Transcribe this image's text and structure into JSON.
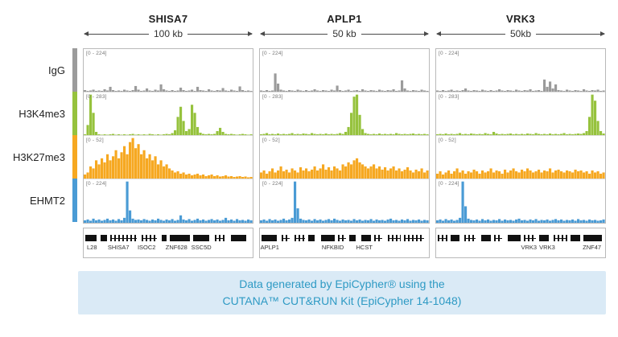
{
  "header": {
    "regions": [
      {
        "name": "SHISA7",
        "span": "100 kb"
      },
      {
        "name": "APLP1",
        "span": "50 kb"
      },
      {
        "name": "VRK3",
        "span": "50kb"
      }
    ]
  },
  "tracks": [
    {
      "label": "IgG",
      "color": "#9b9b9b",
      "scale": "[0 - 224]"
    },
    {
      "label": "H3K4me3",
      "color": "#96c23d",
      "scale": "[0 - 283]"
    },
    {
      "label": "H3K27me3",
      "color": "#f6a821",
      "scale": "[0 - 52]"
    },
    {
      "label": "EHMT2",
      "color": "#4a9bd5",
      "scale": "[0 - 224]"
    }
  ],
  "caption": {
    "line1": "Data generated by EpiCypher® using the",
    "line2": "CUTANA™ CUT&RUN Kit (EpiCypher 14-1048)"
  },
  "chart_data": {
    "type": "area",
    "note": "Genome-browser coverage tracks; values normalized 0-1 per track, 60 bins per region",
    "track_scales": {
      "IgG": "[0 - 224]",
      "H3K4me3": "[0 - 283]",
      "H3K27me3": "[0 - 52]",
      "EHMT2": "[0 - 224]"
    },
    "panels": [
      {
        "region": "SHISA7",
        "span": "100 kb",
        "series": {
          "IgG": [
            0.04,
            0.02,
            0.03,
            0.05,
            0.02,
            0.03,
            0.02,
            0.06,
            0.03,
            0.12,
            0.04,
            0.02,
            0.03,
            0.02,
            0.05,
            0.03,
            0.02,
            0.04,
            0.14,
            0.05,
            0.02,
            0.03,
            0.08,
            0.03,
            0.02,
            0.05,
            0.03,
            0.18,
            0.06,
            0.03,
            0.02,
            0.04,
            0.02,
            0.03,
            0.1,
            0.04,
            0.02,
            0.03,
            0.05,
            0.02,
            0.12,
            0.04,
            0.03,
            0.02,
            0.06,
            0.03,
            0.02,
            0.04,
            0.03,
            0.09,
            0.03,
            0.02,
            0.05,
            0.03,
            0.02,
            0.13,
            0.04,
            0.02,
            0.03,
            0.02
          ],
          "H3K4me3": [
            0.02,
            0.25,
            1,
            0.55,
            0.08,
            0.02,
            0.01,
            0.02,
            0.01,
            0.02,
            0.03,
            0.01,
            0.02,
            0.01,
            0.02,
            0.01,
            0.02,
            0.03,
            0.01,
            0.02,
            0.01,
            0.02,
            0.01,
            0.03,
            0.02,
            0.01,
            0.02,
            0.01,
            0.02,
            0.03,
            0.02,
            0.05,
            0.12,
            0.45,
            0.7,
            0.35,
            0.1,
            0.15,
            0.75,
            0.55,
            0.2,
            0.06,
            0.03,
            0.02,
            0.03,
            0.02,
            0.03,
            0.1,
            0.18,
            0.08,
            0.03,
            0.02,
            0.03,
            0.02,
            0.01,
            0.02,
            0.03,
            0.02,
            0.01,
            0.02
          ],
          "H3K27me3": [
            0.1,
            0.15,
            0.3,
            0.25,
            0.45,
            0.35,
            0.5,
            0.4,
            0.6,
            0.45,
            0.55,
            0.7,
            0.5,
            0.65,
            0.8,
            0.6,
            0.9,
            1,
            0.75,
            0.85,
            0.6,
            0.7,
            0.5,
            0.6,
            0.45,
            0.55,
            0.35,
            0.45,
            0.3,
            0.35,
            0.25,
            0.2,
            0.15,
            0.18,
            0.12,
            0.15,
            0.1,
            0.12,
            0.08,
            0.1,
            0.12,
            0.08,
            0.1,
            0.06,
            0.08,
            0.1,
            0.06,
            0.08,
            0.05,
            0.06,
            0.08,
            0.05,
            0.06,
            0.04,
            0.05,
            0.06,
            0.04,
            0.05,
            0.03,
            0.04
          ],
          "EHMT2": [
            0.06,
            0.08,
            0.05,
            0.1,
            0.06,
            0.08,
            0.05,
            0.07,
            0.1,
            0.06,
            0.08,
            0.05,
            0.09,
            0.06,
            0.12,
            1,
            0.3,
            0.1,
            0.07,
            0.08,
            0.06,
            0.09,
            0.07,
            0.05,
            0.08,
            0.06,
            0.1,
            0.07,
            0.05,
            0.08,
            0.06,
            0.09,
            0.05,
            0.07,
            0.18,
            0.08,
            0.06,
            0.09,
            0.05,
            0.07,
            0.1,
            0.06,
            0.08,
            0.05,
            0.07,
            0.09,
            0.06,
            0.08,
            0.05,
            0.07,
            0.12,
            0.06,
            0.08,
            0.05,
            0.09,
            0.06,
            0.07,
            0.05,
            0.08,
            0.06
          ]
        },
        "genes": [
          {
            "x": 0,
            "w": 7,
            "type": "dense"
          },
          {
            "x": 9,
            "w": 4,
            "type": "dense"
          },
          {
            "x": 15,
            "w": 16,
            "type": "exons"
          },
          {
            "x": 34,
            "w": 9,
            "type": "exons"
          },
          {
            "x": 46,
            "w": 3,
            "type": "dense"
          },
          {
            "x": 51,
            "w": 12,
            "type": "dense"
          },
          {
            "x": 65,
            "w": 10,
            "type": "dense"
          },
          {
            "x": 78,
            "w": 6,
            "type": "exons"
          },
          {
            "x": 88,
            "w": 9,
            "type": "dense"
          }
        ],
        "gene_labels": [
          {
            "text": "L28",
            "x": 4
          },
          {
            "text": "SHISA7",
            "x": 20
          },
          {
            "text": "ISOC2",
            "x": 37
          },
          {
            "text": "ZNF628",
            "x": 55
          },
          {
            "text": "SSC5D",
            "x": 70
          }
        ]
      },
      {
        "region": "APLP1",
        "span": "50 kb",
        "series": {
          "IgG": [
            0.03,
            0.02,
            0.04,
            0.02,
            0.03,
            0.45,
            0.2,
            0.05,
            0.03,
            0.02,
            0.04,
            0.03,
            0.02,
            0.05,
            0.03,
            0.02,
            0.04,
            0.02,
            0.03,
            0.06,
            0.03,
            0.02,
            0.04,
            0.03,
            0.02,
            0.05,
            0.03,
            0.15,
            0.04,
            0.02,
            0.03,
            0.05,
            0.02,
            0.03,
            0.04,
            0.02,
            0.06,
            0.03,
            0.02,
            0.04,
            0.03,
            0.02,
            0.05,
            0.03,
            0.02,
            0.04,
            0.03,
            0.06,
            0.02,
            0.03,
            0.28,
            0.08,
            0.03,
            0.02,
            0.04,
            0.03,
            0.02,
            0.05,
            0.03,
            0.02
          ],
          "H3K4me3": [
            0.02,
            0.03,
            0.05,
            0.02,
            0.03,
            0.02,
            0.04,
            0.02,
            0.03,
            0.02,
            0.03,
            0.05,
            0.02,
            0.03,
            0.02,
            0.04,
            0.03,
            0.02,
            0.05,
            0.03,
            0.02,
            0.03,
            0.02,
            0.04,
            0.02,
            0.03,
            0.02,
            0.03,
            0.05,
            0.03,
            0.08,
            0.2,
            0.55,
            0.95,
            1,
            0.5,
            0.15,
            0.05,
            0.03,
            0.02,
            0.03,
            0.02,
            0.04,
            0.02,
            0.03,
            0.02,
            0.03,
            0.02,
            0.05,
            0.03,
            0.02,
            0.03,
            0.02,
            0.03,
            0.04,
            0.02,
            0.03,
            0.02,
            0.03,
            0.02
          ],
          "H3K27me3": [
            0.15,
            0.2,
            0.12,
            0.18,
            0.25,
            0.15,
            0.2,
            0.3,
            0.18,
            0.22,
            0.15,
            0.25,
            0.2,
            0.15,
            0.28,
            0.2,
            0.25,
            0.18,
            0.22,
            0.3,
            0.2,
            0.25,
            0.35,
            0.22,
            0.28,
            0.2,
            0.3,
            0.25,
            0.2,
            0.35,
            0.3,
            0.4,
            0.35,
            0.45,
            0.5,
            0.4,
            0.35,
            0.3,
            0.25,
            0.3,
            0.35,
            0.25,
            0.3,
            0.22,
            0.28,
            0.2,
            0.25,
            0.3,
            0.2,
            0.25,
            0.18,
            0.22,
            0.28,
            0.2,
            0.15,
            0.22,
            0.18,
            0.25,
            0.15,
            0.2
          ],
          "EHMT2": [
            0.06,
            0.08,
            0.05,
            0.09,
            0.06,
            0.08,
            0.05,
            0.07,
            0.1,
            0.06,
            0.08,
            0.12,
            1,
            0.35,
            0.1,
            0.07,
            0.06,
            0.08,
            0.05,
            0.09,
            0.06,
            0.08,
            0.05,
            0.07,
            0.09,
            0.06,
            0.1,
            0.07,
            0.05,
            0.08,
            0.06,
            0.07,
            0.05,
            0.09,
            0.06,
            0.08,
            0.05,
            0.07,
            0.06,
            0.09,
            0.05,
            0.08,
            0.06,
            0.07,
            0.05,
            0.08,
            0.1,
            0.06,
            0.07,
            0.05,
            0.08,
            0.06,
            0.09,
            0.05,
            0.07,
            0.06,
            0.08,
            0.05,
            0.07,
            0.06
          ]
        },
        "genes": [
          {
            "x": 0,
            "w": 9,
            "type": "dense"
          },
          {
            "x": 12,
            "w": 5,
            "type": "exons"
          },
          {
            "x": 20,
            "w": 6,
            "type": "exons"
          },
          {
            "x": 28,
            "w": 4,
            "type": "dense"
          },
          {
            "x": 36,
            "w": 8,
            "type": "dense"
          },
          {
            "x": 46,
            "w": 5,
            "type": "exons"
          },
          {
            "x": 53,
            "w": 4,
            "type": "dense"
          },
          {
            "x": 60,
            "w": 6,
            "type": "dense"
          },
          {
            "x": 68,
            "w": 5,
            "type": "exons"
          },
          {
            "x": 76,
            "w": 8,
            "type": "exons"
          },
          {
            "x": 86,
            "w": 12,
            "type": "exons"
          }
        ],
        "gene_labels": [
          {
            "text": "APLP1",
            "x": 5
          },
          {
            "text": "NFKBID",
            "x": 43
          },
          {
            "text": "HCST",
            "x": 62
          }
        ]
      },
      {
        "region": "VRK3",
        "span": "50kb",
        "series": {
          "IgG": [
            0.03,
            0.02,
            0.04,
            0.02,
            0.03,
            0.05,
            0.02,
            0.03,
            0.02,
            0.04,
            0.08,
            0.03,
            0.02,
            0.04,
            0.03,
            0.02,
            0.05,
            0.03,
            0.02,
            0.04,
            0.02,
            0.03,
            0.06,
            0.03,
            0.02,
            0.04,
            0.03,
            0.02,
            0.05,
            0.03,
            0.02,
            0.04,
            0.03,
            0.06,
            0.02,
            0.03,
            0.04,
            0.02,
            0.3,
            0.12,
            0.25,
            0.08,
            0.18,
            0.04,
            0.03,
            0.02,
            0.05,
            0.03,
            0.02,
            0.04,
            0.03,
            0.02,
            0.06,
            0.03,
            0.02,
            0.04,
            0.03,
            0.05,
            0.02,
            0.03
          ],
          "H3K4me3": [
            0.02,
            0.03,
            0.02,
            0.04,
            0.02,
            0.03,
            0.02,
            0.03,
            0.05,
            0.02,
            0.03,
            0.02,
            0.04,
            0.03,
            0.02,
            0.03,
            0.02,
            0.05,
            0.03,
            0.02,
            0.08,
            0.04,
            0.02,
            0.03,
            0.02,
            0.03,
            0.04,
            0.02,
            0.03,
            0.02,
            0.03,
            0.02,
            0.04,
            0.03,
            0.02,
            0.05,
            0.03,
            0.02,
            0.03,
            0.02,
            0.04,
            0.02,
            0.03,
            0.02,
            0.03,
            0.05,
            0.02,
            0.03,
            0.02,
            0.03,
            0.04,
            0.03,
            0.05,
            0.1,
            0.45,
            1,
            0.85,
            0.35,
            0.1,
            0.04
          ],
          "H3K27me3": [
            0.12,
            0.18,
            0.1,
            0.15,
            0.2,
            0.12,
            0.18,
            0.25,
            0.15,
            0.2,
            0.12,
            0.18,
            0.15,
            0.22,
            0.18,
            0.12,
            0.2,
            0.15,
            0.18,
            0.25,
            0.15,
            0.2,
            0.18,
            0.12,
            0.22,
            0.15,
            0.2,
            0.25,
            0.18,
            0.15,
            0.22,
            0.18,
            0.25,
            0.2,
            0.15,
            0.18,
            0.22,
            0.15,
            0.2,
            0.18,
            0.25,
            0.15,
            0.2,
            0.22,
            0.18,
            0.15,
            0.2,
            0.18,
            0.15,
            0.22,
            0.18,
            0.2,
            0.15,
            0.18,
            0.12,
            0.2,
            0.15,
            0.18,
            0.12,
            0.15
          ],
          "EHMT2": [
            0.06,
            0.08,
            0.05,
            0.09,
            0.06,
            0.08,
            0.05,
            0.07,
            0.12,
            1,
            0.4,
            0.1,
            0.07,
            0.06,
            0.08,
            0.05,
            0.09,
            0.06,
            0.08,
            0.05,
            0.07,
            0.06,
            0.09,
            0.05,
            0.08,
            0.06,
            0.07,
            0.05,
            0.08,
            0.1,
            0.06,
            0.07,
            0.05,
            0.08,
            0.06,
            0.09,
            0.05,
            0.07,
            0.06,
            0.08,
            0.05,
            0.07,
            0.09,
            0.06,
            0.08,
            0.05,
            0.07,
            0.06,
            0.08,
            0.05,
            0.09,
            0.06,
            0.07,
            0.05,
            0.08,
            0.06,
            0.07,
            0.05,
            0.06,
            0.08
          ]
        },
        "genes": [
          {
            "x": 0,
            "w": 6,
            "type": "exons"
          },
          {
            "x": 8,
            "w": 5,
            "type": "dense"
          },
          {
            "x": 16,
            "w": 7,
            "type": "exons"
          },
          {
            "x": 26,
            "w": 6,
            "type": "dense"
          },
          {
            "x": 34,
            "w": 5,
            "type": "exons"
          },
          {
            "x": 42,
            "w": 8,
            "type": "dense"
          },
          {
            "x": 52,
            "w": 7,
            "type": "exons"
          },
          {
            "x": 61,
            "w": 6,
            "type": "dense"
          },
          {
            "x": 70,
            "w": 8,
            "type": "exons"
          },
          {
            "x": 80,
            "w": 6,
            "type": "dense"
          },
          {
            "x": 88,
            "w": 11,
            "type": "dense"
          }
        ],
        "gene_labels": [
          {
            "text": "VRK3",
            "x": 55
          },
          {
            "text": "VRK3",
            "x": 66
          },
          {
            "text": "ZNF47",
            "x": 93
          }
        ]
      }
    ]
  }
}
